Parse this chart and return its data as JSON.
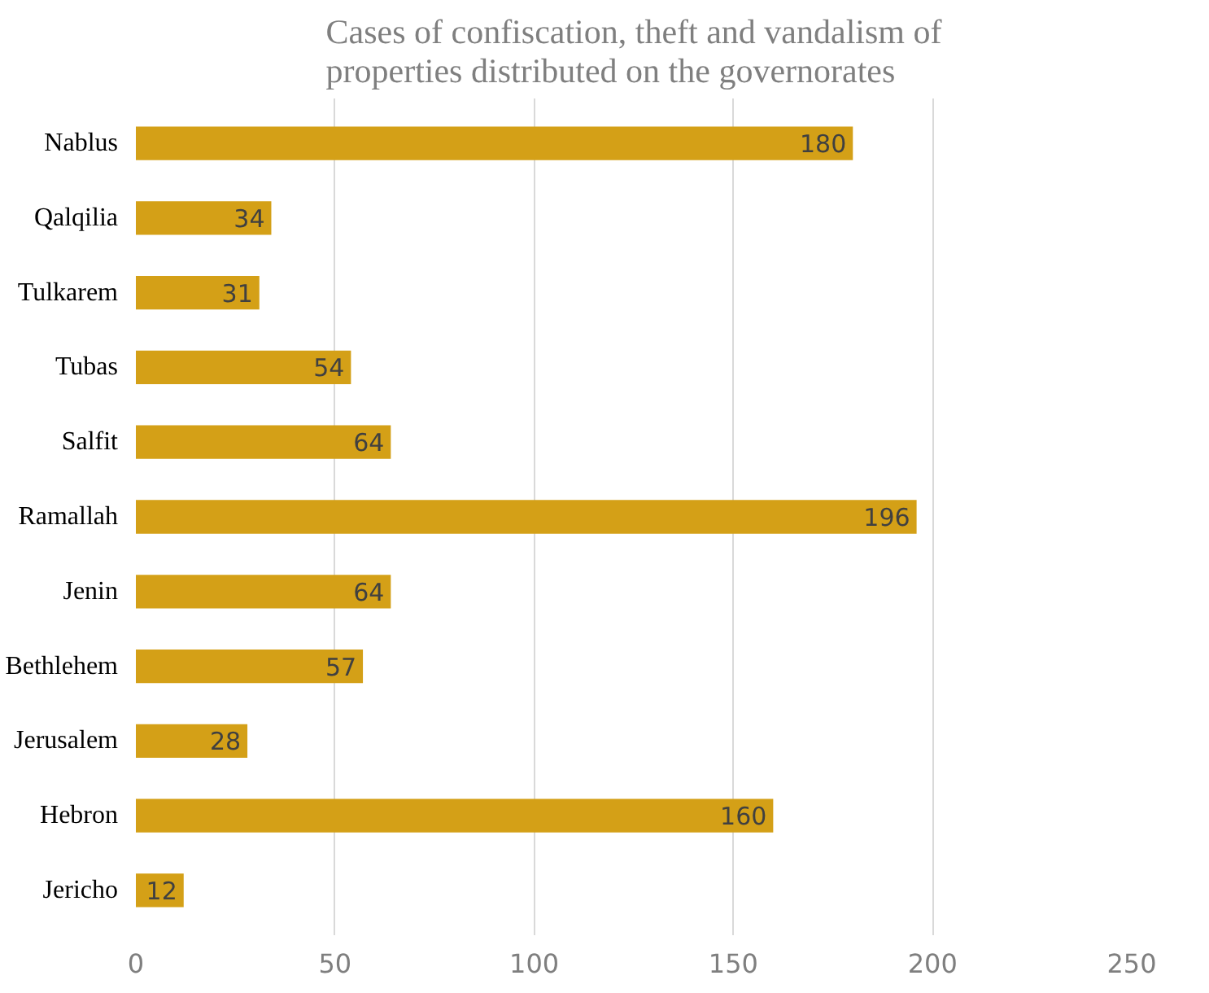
{
  "chart_data": {
    "type": "bar",
    "orientation": "horizontal",
    "title": "Cases of confiscation, theft and vandalism of properties distributed on the governorates",
    "categories": [
      "Nablus",
      "Qalqilia",
      "Tulkarem",
      "Tubas",
      "Salfit",
      "Ramallah",
      "Jenin",
      "Bethlehem",
      "Jerusalem",
      "Hebron",
      "Jericho"
    ],
    "values": [
      180,
      34,
      31,
      54,
      64,
      196,
      64,
      57,
      28,
      160,
      12
    ],
    "color": "#d4a017",
    "xlim": [
      0,
      250
    ],
    "xticks": [
      0,
      50,
      100,
      150,
      200,
      250
    ],
    "grid": "x",
    "data_labels": true
  }
}
